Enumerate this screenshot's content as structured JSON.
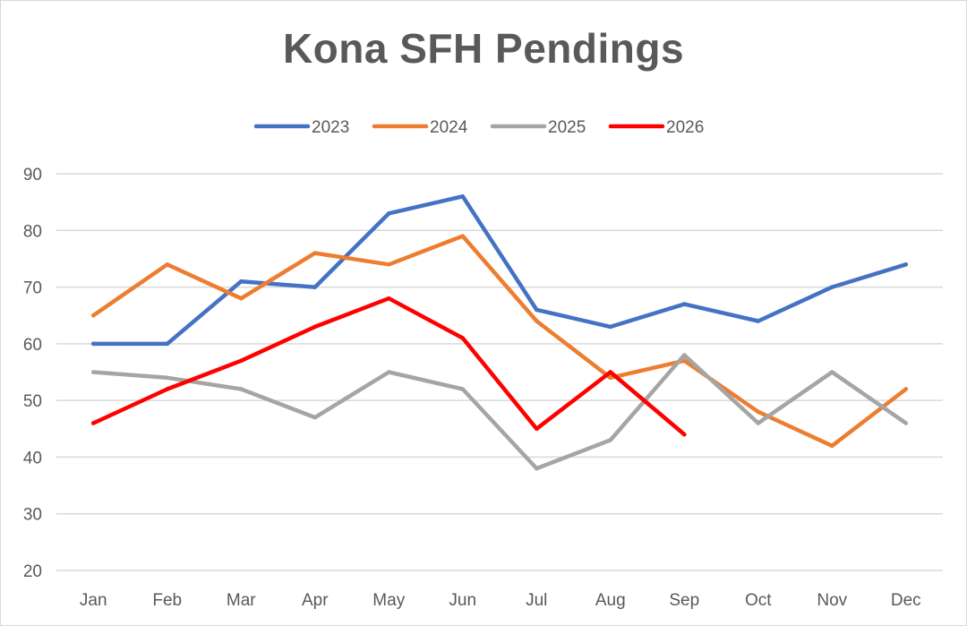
{
  "chart_data": {
    "type": "line",
    "title": "Kona SFH Pendings",
    "xlabel": "",
    "ylabel": "",
    "categories": [
      "Jan",
      "Feb",
      "Mar",
      "Apr",
      "May",
      "Jun",
      "Jul",
      "Aug",
      "Sep",
      "Oct",
      "Nov",
      "Dec"
    ],
    "ylim": [
      20,
      90
    ],
    "yticks": [
      20,
      30,
      40,
      50,
      60,
      70,
      80,
      90
    ],
    "grid": true,
    "legend_position": "top",
    "series": [
      {
        "name": "2023",
        "color": "#4472C4",
        "values": [
          60,
          60,
          71,
          70,
          83,
          86,
          66,
          63,
          67,
          64,
          70,
          74
        ]
      },
      {
        "name": "2024",
        "color": "#ED7D31",
        "values": [
          65,
          74,
          68,
          76,
          74,
          79,
          64,
          54,
          57,
          48,
          42,
          52
        ]
      },
      {
        "name": "2025",
        "color": "#A5A5A5",
        "values": [
          55,
          54,
          52,
          47,
          55,
          52,
          38,
          43,
          58,
          46,
          55,
          46
        ]
      },
      {
        "name": "2026",
        "color": "#FF0000",
        "values": [
          46,
          52,
          57,
          63,
          68,
          61,
          45,
          55,
          44,
          null,
          null,
          null
        ]
      }
    ]
  }
}
